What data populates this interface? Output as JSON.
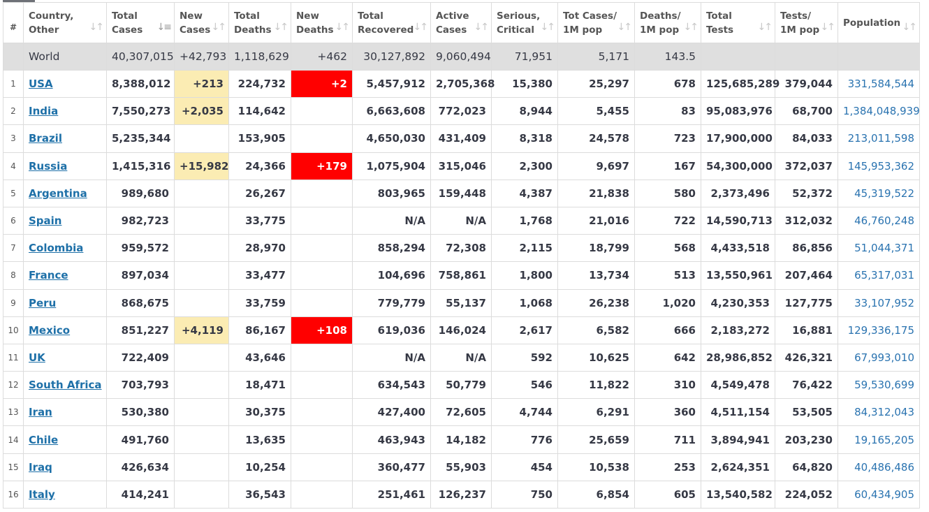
{
  "headers": [
    {
      "key": "idx",
      "label": "#"
    },
    {
      "key": "country",
      "label": "Country, Other"
    },
    {
      "key": "total_cases",
      "label": "Total Cases"
    },
    {
      "key": "new_cases",
      "label": "New Cases"
    },
    {
      "key": "total_deaths",
      "label": "Total Deaths"
    },
    {
      "key": "new_deaths",
      "label": "New Deaths"
    },
    {
      "key": "total_recovered",
      "label": "Total Recovered"
    },
    {
      "key": "active_cases",
      "label": "Active Cases"
    },
    {
      "key": "serious_critical",
      "label": "Serious, Critical"
    },
    {
      "key": "cases_per_1m",
      "label": "Tot Cases/ 1M pop"
    },
    {
      "key": "deaths_per_1m",
      "label": "Deaths/ 1M pop"
    },
    {
      "key": "total_tests",
      "label": "Total Tests"
    },
    {
      "key": "tests_per_1m",
      "label": "Tests/ 1M pop"
    },
    {
      "key": "population",
      "label": "Population"
    }
  ],
  "header_line1": [
    "#",
    "Country,",
    "Total",
    "New",
    "Total",
    "New",
    "Total",
    "Active",
    "Serious,",
    "Tot Cases/",
    "Deaths/",
    "Total",
    "Tests/",
    "Population"
  ],
  "header_line2": [
    "",
    "Other",
    "Cases",
    "Cases",
    "Deaths",
    "Deaths",
    "Recovered",
    "Cases",
    "Critical",
    "1M pop",
    "1M pop",
    "Tests",
    "1M pop",
    ""
  ],
  "colors": {
    "new_cases_highlight": "#fbecb3",
    "new_deaths_highlight": "#ff0000",
    "link": "#1e70a8",
    "world_row": "#dfdfdf"
  },
  "world": {
    "country": "World",
    "total_cases": "40,307,015",
    "new_cases": "+42,793",
    "total_deaths": "1,118,629",
    "new_deaths": "+462",
    "total_recovered": "30,127,892",
    "active_cases": "9,060,494",
    "serious_critical": "71,951",
    "cases_per_1m": "5,171",
    "deaths_per_1m": "143.5",
    "total_tests": "",
    "tests_per_1m": "",
    "population": ""
  },
  "rows": [
    {
      "idx": "1",
      "country": "USA",
      "total_cases": "8,388,012",
      "new_cases": "+213",
      "total_deaths": "224,732",
      "new_deaths": "+2",
      "total_recovered": "5,457,912",
      "active_cases": "2,705,368",
      "serious_critical": "15,380",
      "cases_per_1m": "25,297",
      "deaths_per_1m": "678",
      "total_tests": "125,685,289",
      "tests_per_1m": "379,044",
      "population": "331,584,544"
    },
    {
      "idx": "2",
      "country": "India",
      "total_cases": "7,550,273",
      "new_cases": "+2,035",
      "total_deaths": "114,642",
      "new_deaths": "",
      "total_recovered": "6,663,608",
      "active_cases": "772,023",
      "serious_critical": "8,944",
      "cases_per_1m": "5,455",
      "deaths_per_1m": "83",
      "total_tests": "95,083,976",
      "tests_per_1m": "68,700",
      "population": "1,384,048,939"
    },
    {
      "idx": "3",
      "country": "Brazil",
      "total_cases": "5,235,344",
      "new_cases": "",
      "total_deaths": "153,905",
      "new_deaths": "",
      "total_recovered": "4,650,030",
      "active_cases": "431,409",
      "serious_critical": "8,318",
      "cases_per_1m": "24,578",
      "deaths_per_1m": "723",
      "total_tests": "17,900,000",
      "tests_per_1m": "84,033",
      "population": "213,011,598"
    },
    {
      "idx": "4",
      "country": "Russia",
      "total_cases": "1,415,316",
      "new_cases": "+15,982",
      "total_deaths": "24,366",
      "new_deaths": "+179",
      "total_recovered": "1,075,904",
      "active_cases": "315,046",
      "serious_critical": "2,300",
      "cases_per_1m": "9,697",
      "deaths_per_1m": "167",
      "total_tests": "54,300,000",
      "tests_per_1m": "372,037",
      "population": "145,953,362"
    },
    {
      "idx": "5",
      "country": "Argentina",
      "total_cases": "989,680",
      "new_cases": "",
      "total_deaths": "26,267",
      "new_deaths": "",
      "total_recovered": "803,965",
      "active_cases": "159,448",
      "serious_critical": "4,387",
      "cases_per_1m": "21,838",
      "deaths_per_1m": "580",
      "total_tests": "2,373,496",
      "tests_per_1m": "52,372",
      "population": "45,319,522"
    },
    {
      "idx": "6",
      "country": "Spain",
      "total_cases": "982,723",
      "new_cases": "",
      "total_deaths": "33,775",
      "new_deaths": "",
      "total_recovered": "N/A",
      "active_cases": "N/A",
      "serious_critical": "1,768",
      "cases_per_1m": "21,016",
      "deaths_per_1m": "722",
      "total_tests": "14,590,713",
      "tests_per_1m": "312,032",
      "population": "46,760,248"
    },
    {
      "idx": "7",
      "country": "Colombia",
      "total_cases": "959,572",
      "new_cases": "",
      "total_deaths": "28,970",
      "new_deaths": "",
      "total_recovered": "858,294",
      "active_cases": "72,308",
      "serious_critical": "2,115",
      "cases_per_1m": "18,799",
      "deaths_per_1m": "568",
      "total_tests": "4,433,518",
      "tests_per_1m": "86,856",
      "population": "51,044,371"
    },
    {
      "idx": "8",
      "country": "France",
      "total_cases": "897,034",
      "new_cases": "",
      "total_deaths": "33,477",
      "new_deaths": "",
      "total_recovered": "104,696",
      "active_cases": "758,861",
      "serious_critical": "1,800",
      "cases_per_1m": "13,734",
      "deaths_per_1m": "513",
      "total_tests": "13,550,961",
      "tests_per_1m": "207,464",
      "population": "65,317,031"
    },
    {
      "idx": "9",
      "country": "Peru",
      "total_cases": "868,675",
      "new_cases": "",
      "total_deaths": "33,759",
      "new_deaths": "",
      "total_recovered": "779,779",
      "active_cases": "55,137",
      "serious_critical": "1,068",
      "cases_per_1m": "26,238",
      "deaths_per_1m": "1,020",
      "total_tests": "4,230,353",
      "tests_per_1m": "127,775",
      "population": "33,107,952"
    },
    {
      "idx": "10",
      "country": "Mexico",
      "total_cases": "851,227",
      "new_cases": "+4,119",
      "total_deaths": "86,167",
      "new_deaths": "+108",
      "total_recovered": "619,036",
      "active_cases": "146,024",
      "serious_critical": "2,617",
      "cases_per_1m": "6,582",
      "deaths_per_1m": "666",
      "total_tests": "2,183,272",
      "tests_per_1m": "16,881",
      "population": "129,336,175"
    },
    {
      "idx": "11",
      "country": "UK",
      "total_cases": "722,409",
      "new_cases": "",
      "total_deaths": "43,646",
      "new_deaths": "",
      "total_recovered": "N/A",
      "active_cases": "N/A",
      "serious_critical": "592",
      "cases_per_1m": "10,625",
      "deaths_per_1m": "642",
      "total_tests": "28,986,852",
      "tests_per_1m": "426,321",
      "population": "67,993,010"
    },
    {
      "idx": "12",
      "country": "South Africa",
      "total_cases": "703,793",
      "new_cases": "",
      "total_deaths": "18,471",
      "new_deaths": "",
      "total_recovered": "634,543",
      "active_cases": "50,779",
      "serious_critical": "546",
      "cases_per_1m": "11,822",
      "deaths_per_1m": "310",
      "total_tests": "4,549,478",
      "tests_per_1m": "76,422",
      "population": "59,530,699"
    },
    {
      "idx": "13",
      "country": "Iran",
      "total_cases": "530,380",
      "new_cases": "",
      "total_deaths": "30,375",
      "new_deaths": "",
      "total_recovered": "427,400",
      "active_cases": "72,605",
      "serious_critical": "4,744",
      "cases_per_1m": "6,291",
      "deaths_per_1m": "360",
      "total_tests": "4,511,154",
      "tests_per_1m": "53,505",
      "population": "84,312,043"
    },
    {
      "idx": "14",
      "country": "Chile",
      "total_cases": "491,760",
      "new_cases": "",
      "total_deaths": "13,635",
      "new_deaths": "",
      "total_recovered": "463,943",
      "active_cases": "14,182",
      "serious_critical": "776",
      "cases_per_1m": "25,659",
      "deaths_per_1m": "711",
      "total_tests": "3,894,941",
      "tests_per_1m": "203,230",
      "population": "19,165,205"
    },
    {
      "idx": "15",
      "country": "Iraq",
      "total_cases": "426,634",
      "new_cases": "",
      "total_deaths": "10,254",
      "new_deaths": "",
      "total_recovered": "360,477",
      "active_cases": "55,903",
      "serious_critical": "454",
      "cases_per_1m": "10,538",
      "deaths_per_1m": "253",
      "total_tests": "2,624,351",
      "tests_per_1m": "64,820",
      "population": "40,486,486"
    },
    {
      "idx": "16",
      "country": "Italy",
      "total_cases": "414,241",
      "new_cases": "",
      "total_deaths": "36,543",
      "new_deaths": "",
      "total_recovered": "251,461",
      "active_cases": "126,237",
      "serious_critical": "750",
      "cases_per_1m": "6,854",
      "deaths_per_1m": "605",
      "total_tests": "13,540,582",
      "tests_per_1m": "224,052",
      "population": "60,434,905"
    }
  ]
}
